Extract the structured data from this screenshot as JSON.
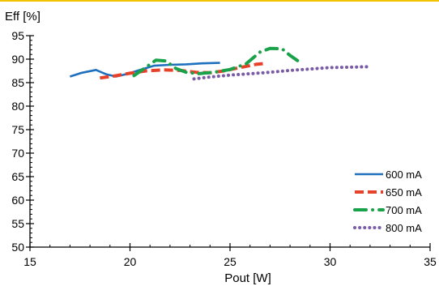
{
  "chart_data": {
    "type": "line",
    "ylabel": "Eff [%]",
    "xlabel": "Pout [W]",
    "xlim": [
      15,
      35
    ],
    "ylim": [
      50,
      95
    ],
    "x_ticks": [
      "15",
      "20",
      "25",
      "30",
      "35"
    ],
    "y_ticks": [
      "50",
      "55",
      "60",
      "65",
      "70",
      "75",
      "80",
      "85",
      "90",
      "95"
    ],
    "legend_position": "bottom-right",
    "grid": false,
    "series": [
      {
        "name": "600 mA",
        "color": "#1f6fbf",
        "style": "solid",
        "points": [
          [
            17.0,
            86.3
          ],
          [
            17.6,
            87.1
          ],
          [
            18.3,
            87.7
          ],
          [
            18.8,
            86.8
          ],
          [
            19.3,
            86.3
          ],
          [
            19.9,
            86.9
          ],
          [
            20.5,
            87.7
          ],
          [
            21.2,
            88.6
          ],
          [
            22.0,
            88.8
          ],
          [
            22.8,
            88.9
          ],
          [
            23.6,
            89.1
          ],
          [
            24.5,
            89.2
          ]
        ]
      },
      {
        "name": "650 mA",
        "color": "#e8412a",
        "style": "dashed",
        "points": [
          [
            18.5,
            86.0
          ],
          [
            19.2,
            86.4
          ],
          [
            20.0,
            87.0
          ],
          [
            20.8,
            87.5
          ],
          [
            21.7,
            87.7
          ],
          [
            22.5,
            87.6
          ],
          [
            23.3,
            87.2
          ],
          [
            24.0,
            87.1
          ],
          [
            24.7,
            87.5
          ],
          [
            25.5,
            88.2
          ],
          [
            26.3,
            88.9
          ],
          [
            26.8,
            89.1
          ]
        ]
      },
      {
        "name": "700 mA",
        "color": "#1aa24a",
        "style": "dash-dot",
        "points": [
          [
            20.2,
            86.5
          ],
          [
            20.8,
            88.3
          ],
          [
            21.3,
            89.8
          ],
          [
            21.8,
            89.6
          ],
          [
            22.3,
            88.0
          ],
          [
            22.8,
            87.2
          ],
          [
            23.4,
            86.9
          ],
          [
            24.2,
            87.2
          ],
          [
            25.0,
            87.8
          ],
          [
            25.8,
            89.0
          ],
          [
            26.5,
            91.5
          ],
          [
            27.0,
            92.3
          ],
          [
            27.6,
            92.2
          ],
          [
            28.0,
            90.8
          ],
          [
            28.4,
            89.6
          ]
        ]
      },
      {
        "name": "800 mA",
        "color": "#7a5ba6",
        "style": "dotted",
        "points": [
          [
            23.2,
            85.8
          ],
          [
            24.0,
            86.2
          ],
          [
            25.0,
            86.6
          ],
          [
            26.0,
            86.9
          ],
          [
            27.0,
            87.2
          ],
          [
            28.0,
            87.6
          ],
          [
            29.0,
            87.9
          ],
          [
            30.0,
            88.2
          ],
          [
            31.0,
            88.3
          ],
          [
            32.0,
            88.4
          ]
        ]
      }
    ]
  }
}
